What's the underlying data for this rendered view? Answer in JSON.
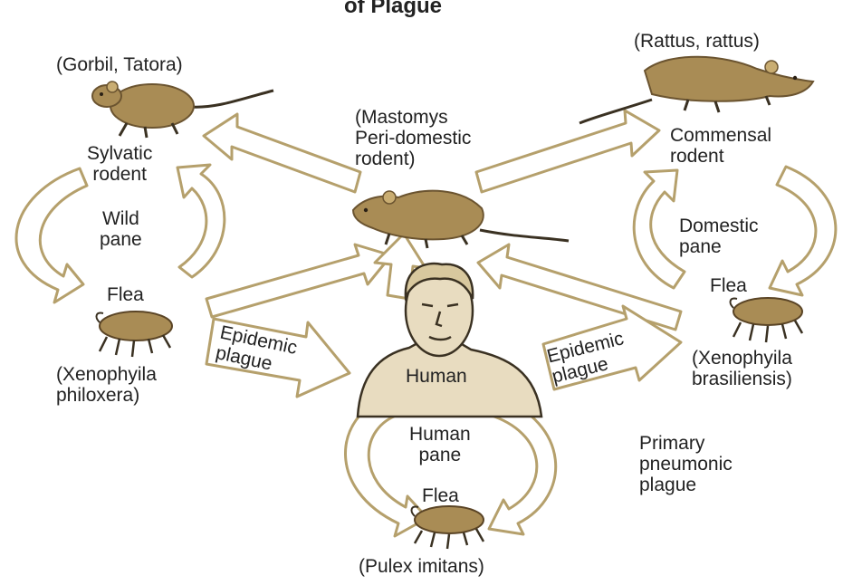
{
  "title": "of Plague",
  "nodes": {
    "sylvatic_species": "(Gorbil, Tatora)",
    "sylvatic_rodent": [
      "Sylvatic",
      "rodent"
    ],
    "wild_pane": [
      "Wild",
      "pane"
    ],
    "flea_left": "Flea",
    "flea_left_species": [
      "(Xenophyila",
      "philoxera)"
    ],
    "mastomys": [
      "(Mastomys",
      "Peri-domestic",
      "rodent)"
    ],
    "commensal_species": "(Rattus, rattus)",
    "commensal_rodent": [
      "Commensal",
      "rodent"
    ],
    "domestic_pane": [
      "Domestic",
      "pane"
    ],
    "flea_right": "Flea",
    "flea_right_species": [
      "(Xenophyila",
      "brasiliensis)"
    ],
    "human": "Human",
    "human_pane": [
      "Human",
      "pane"
    ],
    "flea_bottom": "Flea",
    "flea_bottom_species": "(Pulex imitans)",
    "primary_pneumonic": [
      "Primary",
      "pneumonic",
      "plague"
    ]
  },
  "arrows": {
    "epidemic_left": [
      "Epidemic",
      "plague"
    ],
    "epidemic_right": [
      "Epidemic",
      "plague"
    ]
  },
  "colors": {
    "arrow_outline": "#b5a06c",
    "arrow_fill": "#ffffff",
    "animal": "#a98c55",
    "animal_dark": "#6b5430",
    "skin": "#e8dcc0",
    "skin_line": "#3a3122",
    "text": "#222222"
  }
}
